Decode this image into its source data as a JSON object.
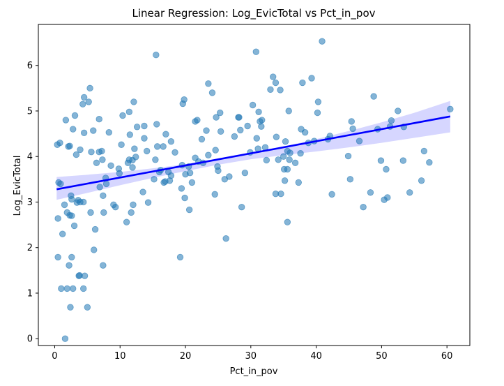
{
  "chart_data": {
    "type": "scatter",
    "title": "Linear Regression: Log_EvicTotal vs Pct_in_pov",
    "xlabel": "Pct_in_pov",
    "ylabel": "Log_EvicTotal",
    "xlim": [
      -2.5,
      63.5
    ],
    "ylim": [
      -0.15,
      6.9
    ],
    "x_ticks": [
      0,
      10,
      20,
      30,
      40,
      50,
      60
    ],
    "y_ticks": [
      0,
      1,
      2,
      3,
      4,
      5,
      6
    ],
    "grid": false,
    "legend": "none",
    "colors": {
      "points": "#1f77b4",
      "regression_line": "#0000ff",
      "confidence_band": "#c8c8ff"
    },
    "regression": {
      "x": [
        0.3,
        60.5
      ],
      "y": [
        3.28,
        4.88
      ]
    },
    "confidence_band": {
      "x": [
        0.3,
        5,
        10,
        15,
        20,
        25,
        30,
        35,
        40,
        45,
        50,
        55,
        60.5
      ],
      "lower": [
        3.05,
        3.2,
        3.37,
        3.53,
        3.68,
        3.82,
        3.94,
        4.03,
        4.11,
        4.2,
        4.3,
        4.41,
        4.53
      ],
      "upper": [
        3.55,
        3.6,
        3.66,
        3.74,
        3.83,
        3.94,
        4.07,
        4.22,
        4.38,
        4.56,
        4.75,
        4.96,
        5.22
      ]
    },
    "points": [
      [
        0.4,
        4.26
      ],
      [
        0.8,
        4.3
      ],
      [
        0.6,
        3.43
      ],
      [
        0.9,
        3.4
      ],
      [
        0.5,
        2.64
      ],
      [
        1.2,
        2.3
      ],
      [
        0.5,
        1.79
      ],
      [
        1.0,
        1.1
      ],
      [
        1.6,
        0.0
      ],
      [
        1.5,
        2.94
      ],
      [
        1.7,
        4.8
      ],
      [
        2.1,
        4.22
      ],
      [
        2.3,
        4.23
      ],
      [
        1.9,
        2.77
      ],
      [
        1.9,
        1.1
      ],
      [
        2.3,
        2.71
      ],
      [
        2.2,
        1.61
      ],
      [
        2.4,
        0.69
      ],
      [
        2.5,
        3.14
      ],
      [
        2.6,
        2.7
      ],
      [
        2.6,
        3.06
      ],
      [
        2.6,
        1.79
      ],
      [
        2.8,
        1.1
      ],
      [
        2.8,
        4.6
      ],
      [
        3.0,
        2.48
      ],
      [
        3.1,
        4.9
      ],
      [
        3.3,
        4.04
      ],
      [
        3.4,
        2.99
      ],
      [
        3.6,
        3.04
      ],
      [
        3.9,
        3.0
      ],
      [
        3.7,
        1.38
      ],
      [
        3.8,
        1.39
      ],
      [
        3.9,
        4.15
      ],
      [
        4.3,
        5.15
      ],
      [
        4.4,
        3.0
      ],
      [
        4.5,
        4.52
      ],
      [
        4.4,
        1.1
      ],
      [
        4.6,
        1.38
      ],
      [
        4.5,
        5.3
      ],
      [
        5.0,
        0.69
      ],
      [
        5.2,
        5.2
      ],
      [
        5.4,
        5.5
      ],
      [
        5.5,
        2.77
      ],
      [
        5.6,
        4.1
      ],
      [
        5.9,
        4.57
      ],
      [
        6.0,
        1.95
      ],
      [
        6.2,
        2.4
      ],
      [
        6.4,
        3.86
      ],
      [
        6.8,
        4.1
      ],
      [
        6.8,
        4.82
      ],
      [
        6.9,
        3.33
      ],
      [
        7.3,
        3.93
      ],
      [
        7.2,
        4.12
      ],
      [
        7.4,
        3.14
      ],
      [
        7.5,
        2.77
      ],
      [
        7.4,
        1.61
      ],
      [
        7.9,
        3.4
      ],
      [
        7.8,
        3.53
      ],
      [
        8.3,
        4.53
      ],
      [
        8.6,
        3.8
      ],
      [
        9.0,
        2.94
      ],
      [
        9.3,
        2.89
      ],
      [
        9.8,
        3.73
      ],
      [
        9.9,
        3.63
      ],
      [
        10.2,
        4.26
      ],
      [
        10.4,
        4.9
      ],
      [
        11.2,
        3.86
      ],
      [
        11.0,
        2.56
      ],
      [
        11.4,
        3.93
      ],
      [
        11.4,
        4.98
      ],
      [
        11.5,
        4.48
      ],
      [
        11.7,
        2.77
      ],
      [
        11.9,
        3.76
      ],
      [
        11.9,
        3.92
      ],
      [
        12.0,
        2.94
      ],
      [
        12.1,
        5.2
      ],
      [
        12.2,
        4.17
      ],
      [
        12.4,
        3.99
      ],
      [
        12.6,
        4.65
      ],
      [
        13.5,
        3.22
      ],
      [
        13.7,
        4.4
      ],
      [
        13.7,
        4.67
      ],
      [
        14.1,
        4.12
      ],
      [
        14.3,
        2.99
      ],
      [
        15.2,
        3.5
      ],
      [
        15.5,
        6.23
      ],
      [
        15.6,
        4.71
      ],
      [
        15.4,
        3.93
      ],
      [
        15.7,
        4.22
      ],
      [
        16.0,
        3.66
      ],
      [
        16.2,
        3.7
      ],
      [
        16.6,
        4.22
      ],
      [
        16.9,
        3.45
      ],
      [
        16.7,
        3.43
      ],
      [
        17.0,
        4.49
      ],
      [
        17.4,
        3.66
      ],
      [
        17.6,
        3.47
      ],
      [
        17.8,
        3.58
      ],
      [
        17.8,
        4.33
      ],
      [
        18.4,
        4.09
      ],
      [
        19.2,
        1.79
      ],
      [
        19.4,
        3.3
      ],
      [
        19.5,
        3.81
      ],
      [
        19.6,
        5.16
      ],
      [
        19.8,
        5.25
      ],
      [
        19.9,
        3.09
      ],
      [
        20.0,
        3.61
      ],
      [
        20.5,
        3.78
      ],
      [
        20.6,
        2.83
      ],
      [
        20.7,
        3.64
      ],
      [
        21.0,
        3.43
      ],
      [
        21.5,
        3.97
      ],
      [
        21.5,
        4.77
      ],
      [
        21.8,
        4.8
      ],
      [
        22.0,
        3.89
      ],
      [
        22.5,
        4.38
      ],
      [
        22.7,
        3.86
      ],
      [
        23.2,
        4.57
      ],
      [
        23.5,
        5.6
      ],
      [
        23.5,
        4.03
      ],
      [
        24.1,
        5.4
      ],
      [
        24.5,
        3.17
      ],
      [
        24.7,
        4.86
      ],
      [
        24.6,
        4.14
      ],
      [
        24.9,
        3.78
      ],
      [
        25.0,
        3.69
      ],
      [
        25.3,
        4.96
      ],
      [
        25.4,
        4.55
      ],
      [
        26.0,
        3.5
      ],
      [
        26.2,
        2.2
      ],
      [
        26.7,
        3.56
      ],
      [
        27.5,
        4.44
      ],
      [
        28.1,
        4.86
      ],
      [
        28.2,
        4.86
      ],
      [
        28.4,
        4.58
      ],
      [
        28.6,
        2.89
      ],
      [
        29.1,
        3.64
      ],
      [
        29.5,
        4.67
      ],
      [
        29.9,
        4.09
      ],
      [
        30.3,
        5.13
      ],
      [
        30.8,
        6.3
      ],
      [
        30.9,
        4.4
      ],
      [
        31.1,
        4.17
      ],
      [
        31.2,
        4.98
      ],
      [
        31.4,
        4.77
      ],
      [
        31.6,
        4.66
      ],
      [
        31.7,
        4.8
      ],
      [
        32.2,
        4.2
      ],
      [
        32.4,
        3.92
      ],
      [
        33.0,
        5.47
      ],
      [
        33.4,
        5.75
      ],
      [
        33.8,
        5.62
      ],
      [
        33.8,
        3.18
      ],
      [
        33.9,
        4.43
      ],
      [
        34.2,
        3.93
      ],
      [
        34.5,
        5.46
      ],
      [
        34.6,
        3.18
      ],
      [
        35.0,
        4.0
      ],
      [
        35.1,
        3.72
      ],
      [
        35.2,
        3.47
      ],
      [
        35.3,
        4.33
      ],
      [
        35.6,
        3.72
      ],
      [
        35.6,
        4.12
      ],
      [
        35.6,
        2.56
      ],
      [
        35.8,
        5.0
      ],
      [
        35.9,
        3.93
      ],
      [
        36.0,
        4.08
      ],
      [
        36.8,
        3.86
      ],
      [
        37.3,
        3.43
      ],
      [
        37.6,
        4.07
      ],
      [
        37.7,
        4.6
      ],
      [
        37.9,
        5.62
      ],
      [
        38.3,
        4.53
      ],
      [
        38.8,
        4.3
      ],
      [
        39.3,
        5.72
      ],
      [
        39.7,
        4.34
      ],
      [
        40.2,
        4.96
      ],
      [
        40.3,
        5.2
      ],
      [
        40.9,
        6.53
      ],
      [
        41.8,
        4.38
      ],
      [
        42.1,
        4.45
      ],
      [
        42.4,
        3.17
      ],
      [
        44.9,
        4.01
      ],
      [
        45.2,
        3.5
      ],
      [
        45.4,
        4.77
      ],
      [
        45.6,
        4.61
      ],
      [
        46.6,
        4.34
      ],
      [
        47.2,
        2.89
      ],
      [
        48.3,
        3.21
      ],
      [
        48.8,
        5.32
      ],
      [
        49.4,
        4.6
      ],
      [
        49.9,
        3.91
      ],
      [
        50.4,
        3.05
      ],
      [
        50.7,
        3.72
      ],
      [
        50.9,
        3.1
      ],
      [
        51.3,
        4.66
      ],
      [
        51.5,
        4.79
      ],
      [
        52.5,
        5.0
      ],
      [
        53.3,
        3.91
      ],
      [
        53.4,
        4.65
      ],
      [
        54.3,
        3.21
      ],
      [
        56.1,
        3.47
      ],
      [
        56.5,
        4.12
      ],
      [
        57.3,
        3.87
      ],
      [
        60.5,
        5.04
      ]
    ]
  }
}
